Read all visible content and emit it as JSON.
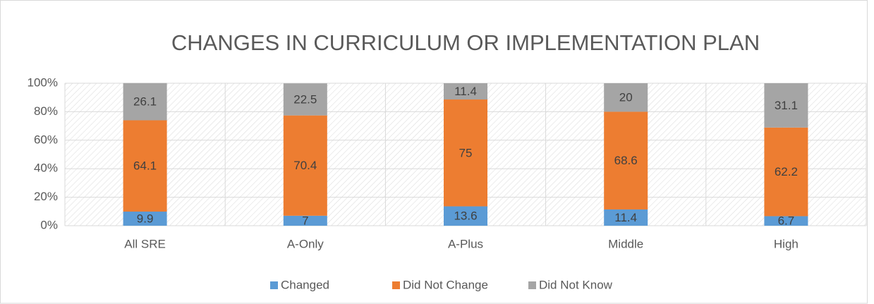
{
  "chart_data": {
    "type": "stacked_bar",
    "title": "CHANGES IN CURRICULUM OR IMPLEMENTATION PLAN",
    "categories": [
      "All SRE",
      "A-Only",
      "A-Plus",
      "Middle",
      "High"
    ],
    "series": [
      {
        "name": "Changed",
        "color": "#5b9bd5",
        "values": [
          9.9,
          7,
          13.6,
          11.4,
          6.7
        ]
      },
      {
        "name": "Did Not Change",
        "color": "#ed7d31",
        "values": [
          64.1,
          70.4,
          75,
          68.6,
          62.2
        ]
      },
      {
        "name": "Did Not Know",
        "color": "#a5a5a5",
        "values": [
          26.1,
          22.5,
          11.4,
          20,
          31.1
        ]
      }
    ],
    "ylim": [
      0,
      100
    ],
    "yticks": [
      {
        "value": 0,
        "label": "0%"
      },
      {
        "value": 20,
        "label": "20%"
      },
      {
        "value": 40,
        "label": "40%"
      },
      {
        "value": 60,
        "label": "60%"
      },
      {
        "value": 80,
        "label": "80%"
      },
      {
        "value": 100,
        "label": "100%"
      }
    ],
    "grid": true,
    "legend": "bottom"
  }
}
